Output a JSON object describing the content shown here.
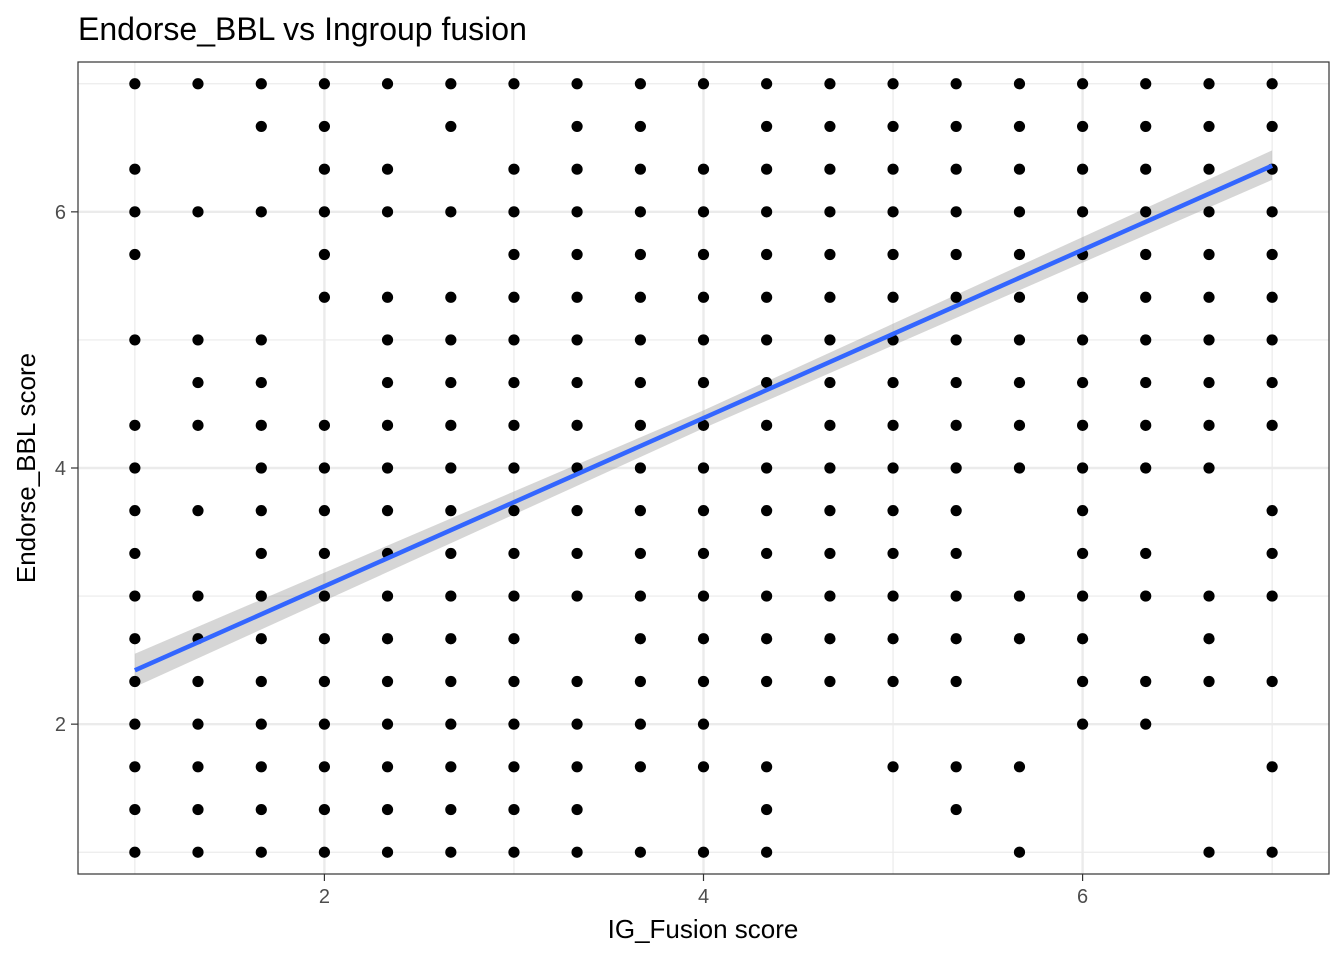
{
  "chart_data": {
    "type": "scatter",
    "title": "Endorse_BBL vs Ingroup fusion",
    "xlabel": "IG_Fusion score",
    "ylabel": "Endorse_BBL score",
    "xlim": [
      0.7,
      7.3
    ],
    "ylim": [
      0.83,
      7.17
    ],
    "xticks": [
      2,
      4,
      6
    ],
    "yticks": [
      2,
      4,
      6
    ],
    "grid": true,
    "legend": "none",
    "colors": {
      "points": "#000000",
      "line": "#3366FF",
      "ribbon": "#999999",
      "grid": "#ebebeb",
      "border": "#333333"
    },
    "fit_line": {
      "x": [
        1,
        7
      ],
      "y": [
        2.42,
        6.36
      ]
    },
    "ribbon": {
      "x": [
        1,
        4,
        7
      ],
      "lower": [
        2.29,
        4.31,
        6.25
      ],
      "upper": [
        2.55,
        4.45,
        6.48
      ]
    },
    "point_columns": [
      {
        "x": 1,
        "y": [
          7,
          6.333,
          6,
          5.667,
          5,
          4.333,
          4,
          3.667,
          3.333,
          3,
          2.667,
          2.333,
          2,
          1.667,
          1.333,
          1
        ]
      },
      {
        "x": 1.333,
        "y": [
          7,
          6,
          5,
          4.667,
          4.333,
          3.667,
          3,
          2.667,
          2.333,
          2,
          1.667,
          1.333,
          1
        ]
      },
      {
        "x": 1.667,
        "y": [
          7,
          6.667,
          6,
          5,
          4.667,
          4.333,
          4,
          3.667,
          3.333,
          3,
          2.667,
          2.333,
          2,
          1.667,
          1.333,
          1
        ]
      },
      {
        "x": 2,
        "y": [
          7,
          6.667,
          6.333,
          6,
          5.667,
          5.333,
          4.333,
          4,
          3.667,
          3.333,
          3,
          2.667,
          2.333,
          2,
          1.667,
          1.333,
          1
        ]
      },
      {
        "x": 2.333,
        "y": [
          7,
          6.333,
          6,
          5.333,
          5,
          4.667,
          4.333,
          4,
          3.667,
          3.333,
          3,
          2.667,
          2.333,
          2,
          1.667,
          1.333,
          1
        ]
      },
      {
        "x": 2.667,
        "y": [
          7,
          6.667,
          6,
          5.333,
          5,
          4.667,
          4.333,
          4,
          3.667,
          3.333,
          3,
          2.667,
          2.333,
          2,
          1.667,
          1.333,
          1
        ]
      },
      {
        "x": 3,
        "y": [
          7,
          6.333,
          6,
          5.667,
          5.333,
          5,
          4.667,
          4.333,
          4,
          3.667,
          3.333,
          3,
          2.667,
          2.333,
          2,
          1.667,
          1.333,
          1
        ]
      },
      {
        "x": 3.333,
        "y": [
          7,
          6.667,
          6.333,
          6,
          5.667,
          5.333,
          5,
          4.667,
          4.333,
          4,
          3.667,
          3.333,
          3,
          2.333,
          2,
          1.667,
          1.333,
          1
        ]
      },
      {
        "x": 3.667,
        "y": [
          7,
          6.667,
          6.333,
          6,
          5.667,
          5.333,
          5,
          4.667,
          4.333,
          4,
          3.667,
          3.333,
          3,
          2.667,
          2.333,
          2,
          1.667,
          1
        ]
      },
      {
        "x": 4,
        "y": [
          7,
          6.333,
          6,
          5.667,
          5.333,
          5,
          4.667,
          4.333,
          4,
          3.667,
          3.333,
          3,
          2.667,
          2.333,
          2,
          1.667,
          1
        ]
      },
      {
        "x": 4.333,
        "y": [
          7,
          6.667,
          6.333,
          6,
          5.667,
          5.333,
          5,
          4.667,
          4.333,
          4,
          3.667,
          3.333,
          3,
          2.667,
          2.333,
          1.667,
          1.333,
          1
        ]
      },
      {
        "x": 4.667,
        "y": [
          7,
          6.667,
          6.333,
          6,
          5.667,
          5.333,
          5,
          4.667,
          4.333,
          4,
          3.667,
          3.333,
          3,
          2.667,
          2.333
        ]
      },
      {
        "x": 5,
        "y": [
          7,
          6.667,
          6.333,
          6,
          5.667,
          5.333,
          5,
          4.667,
          4.333,
          4,
          3.667,
          3.333,
          3,
          2.667,
          2.333,
          1.667
        ]
      },
      {
        "x": 5.333,
        "y": [
          7,
          6.667,
          6.333,
          6,
          5.667,
          5.333,
          5,
          4.667,
          4.333,
          4,
          3.667,
          3.333,
          3,
          2.667,
          2.333,
          1.667,
          1.333
        ]
      },
      {
        "x": 5.667,
        "y": [
          7,
          6.667,
          6.333,
          6,
          5.667,
          5.333,
          5,
          4.667,
          4.333,
          4,
          3,
          2.667,
          1.667,
          1
        ]
      },
      {
        "x": 6,
        "y": [
          7,
          6.667,
          6.333,
          6,
          5.667,
          5.333,
          5,
          4.667,
          4.333,
          4,
          3.667,
          3.333,
          3,
          2.667,
          2.333,
          2
        ]
      },
      {
        "x": 6.333,
        "y": [
          7,
          6.667,
          6.333,
          6,
          5.667,
          5.333,
          5,
          4.667,
          4.333,
          4,
          3.333,
          3,
          2.333,
          2
        ]
      },
      {
        "x": 6.667,
        "y": [
          7,
          6.667,
          6.333,
          6,
          5.667,
          5.333,
          5,
          4.667,
          4.333,
          4,
          3,
          2.667,
          2.333,
          1
        ]
      },
      {
        "x": 7,
        "y": [
          7,
          6.667,
          6.333,
          6,
          5.667,
          5.333,
          5,
          4.667,
          4.333,
          3.667,
          3.333,
          3,
          2.333,
          1.667,
          1
        ]
      }
    ]
  }
}
